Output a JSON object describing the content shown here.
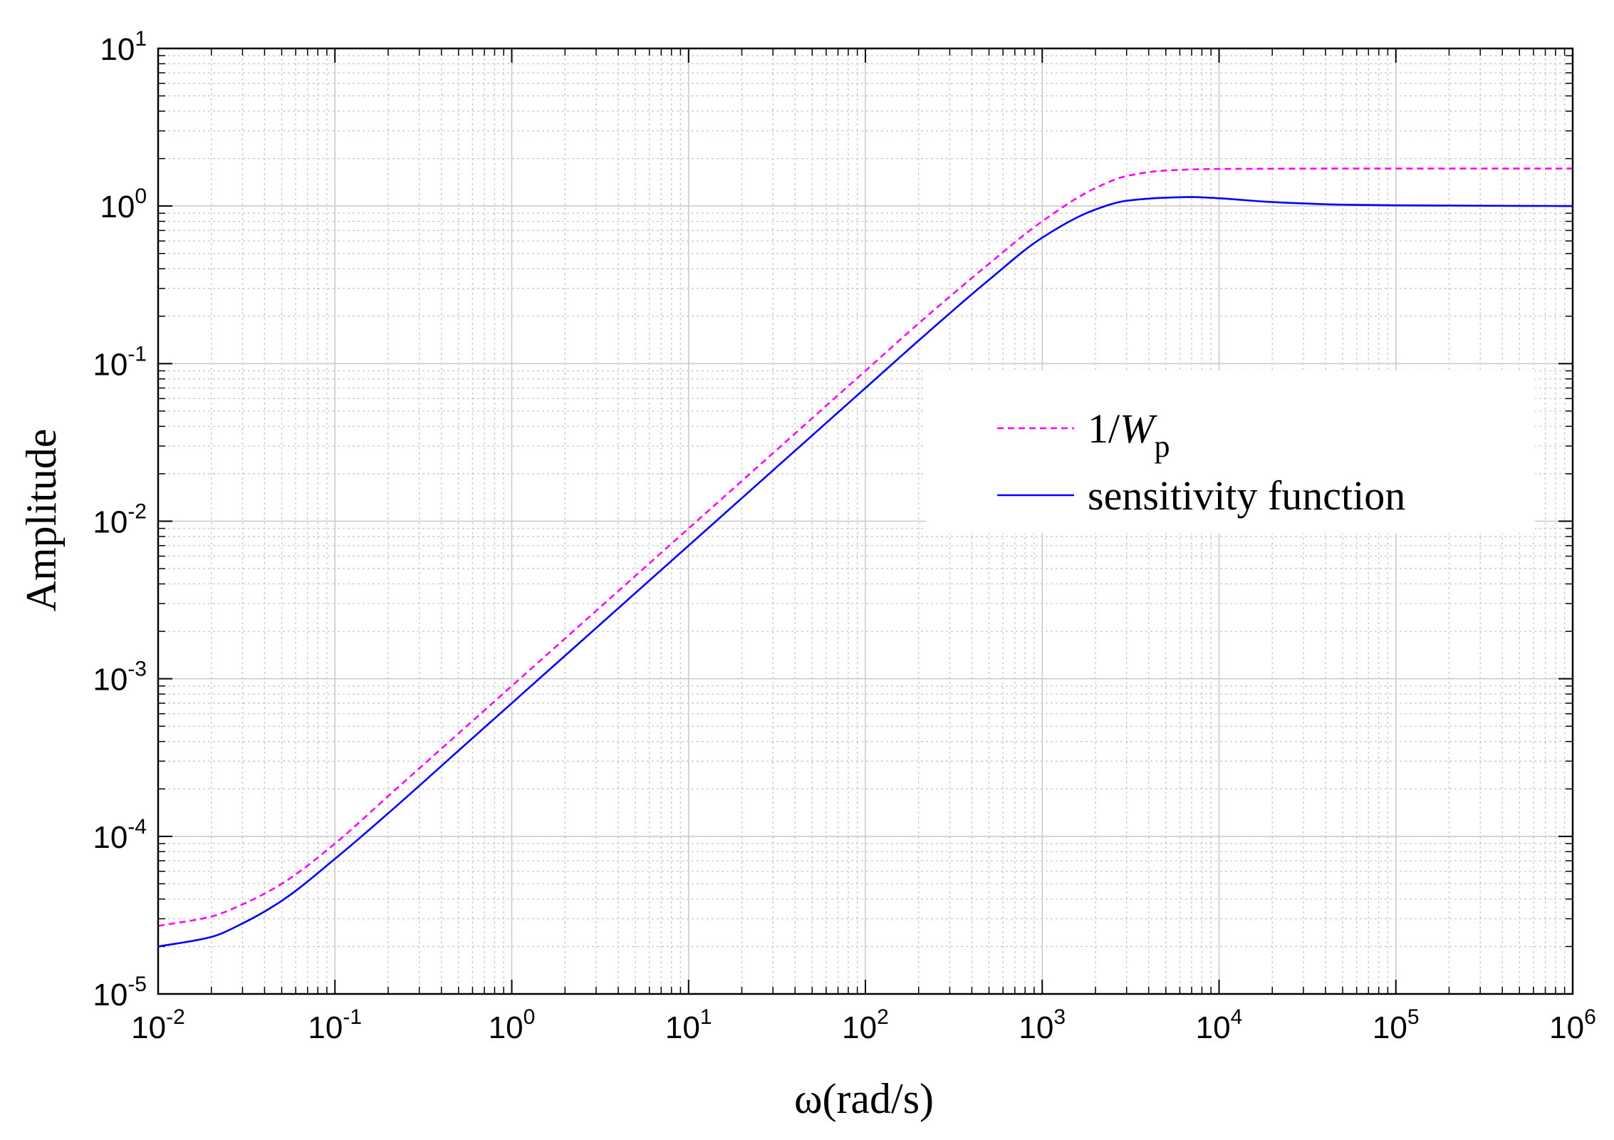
{
  "chart_data": {
    "type": "line",
    "xlabel": "ω(rad/s)",
    "ylabel": "Amplitude",
    "xscale": "log",
    "yscale": "log",
    "xlim": [
      0.01,
      1000000
    ],
    "ylim": [
      1e-05,
      10
    ],
    "xticks": [
      {
        "base": "10",
        "exp": "-2"
      },
      {
        "base": "10",
        "exp": "-1"
      },
      {
        "base": "10",
        "exp": "0"
      },
      {
        "base": "10",
        "exp": "1"
      },
      {
        "base": "10",
        "exp": "2"
      },
      {
        "base": "10",
        "exp": "3"
      },
      {
        "base": "10",
        "exp": "4"
      },
      {
        "base": "10",
        "exp": "5"
      },
      {
        "base": "10",
        "exp": "6"
      }
    ],
    "yticks": [
      {
        "base": "10",
        "exp": "-5"
      },
      {
        "base": "10",
        "exp": "-4"
      },
      {
        "base": "10",
        "exp": "-3"
      },
      {
        "base": "10",
        "exp": "-2"
      },
      {
        "base": "10",
        "exp": "-1"
      },
      {
        "base": "10",
        "exp": "0"
      },
      {
        "base": "10",
        "exp": "1"
      }
    ],
    "grid": true,
    "legend_position": "center-right",
    "series": [
      {
        "name": "1/Wp",
        "legend_main": "1/",
        "legend_italic": "W",
        "legend_sub": "p",
        "color": "#ff00ff",
        "style": "dashed",
        "x": [
          0.01,
          0.02,
          0.03,
          0.05,
          0.1,
          0.2,
          0.5,
          1,
          2,
          5,
          10,
          20,
          50,
          100,
          200,
          500,
          1000,
          2000,
          3000,
          5000,
          10000,
          100000,
          1000000
        ],
        "y": [
          2.7e-05,
          3.1e-05,
          3.7e-05,
          5e-05,
          9e-05,
          0.00018,
          0.00045,
          0.0009,
          0.0018,
          0.0045,
          0.009,
          0.018,
          0.045,
          0.09,
          0.18,
          0.43,
          0.8,
          1.3,
          1.55,
          1.68,
          1.72,
          1.73,
          1.73
        ]
      },
      {
        "name": "sensitivity function",
        "color": "#0000ff",
        "style": "solid",
        "x": [
          0.01,
          0.02,
          0.03,
          0.05,
          0.1,
          0.2,
          0.5,
          1,
          2,
          5,
          10,
          20,
          50,
          100,
          200,
          500,
          1000,
          2000,
          3000,
          5000,
          7000,
          10000,
          20000,
          50000,
          100000,
          1000000
        ],
        "y": [
          2e-05,
          2.3e-05,
          2.8e-05,
          3.9e-05,
          7.2e-05,
          0.00014,
          0.00035,
          0.0007,
          0.0014,
          0.0035,
          0.007,
          0.014,
          0.035,
          0.07,
          0.14,
          0.34,
          0.63,
          0.95,
          1.08,
          1.13,
          1.14,
          1.12,
          1.06,
          1.02,
          1.01,
          1.0
        ]
      }
    ]
  }
}
